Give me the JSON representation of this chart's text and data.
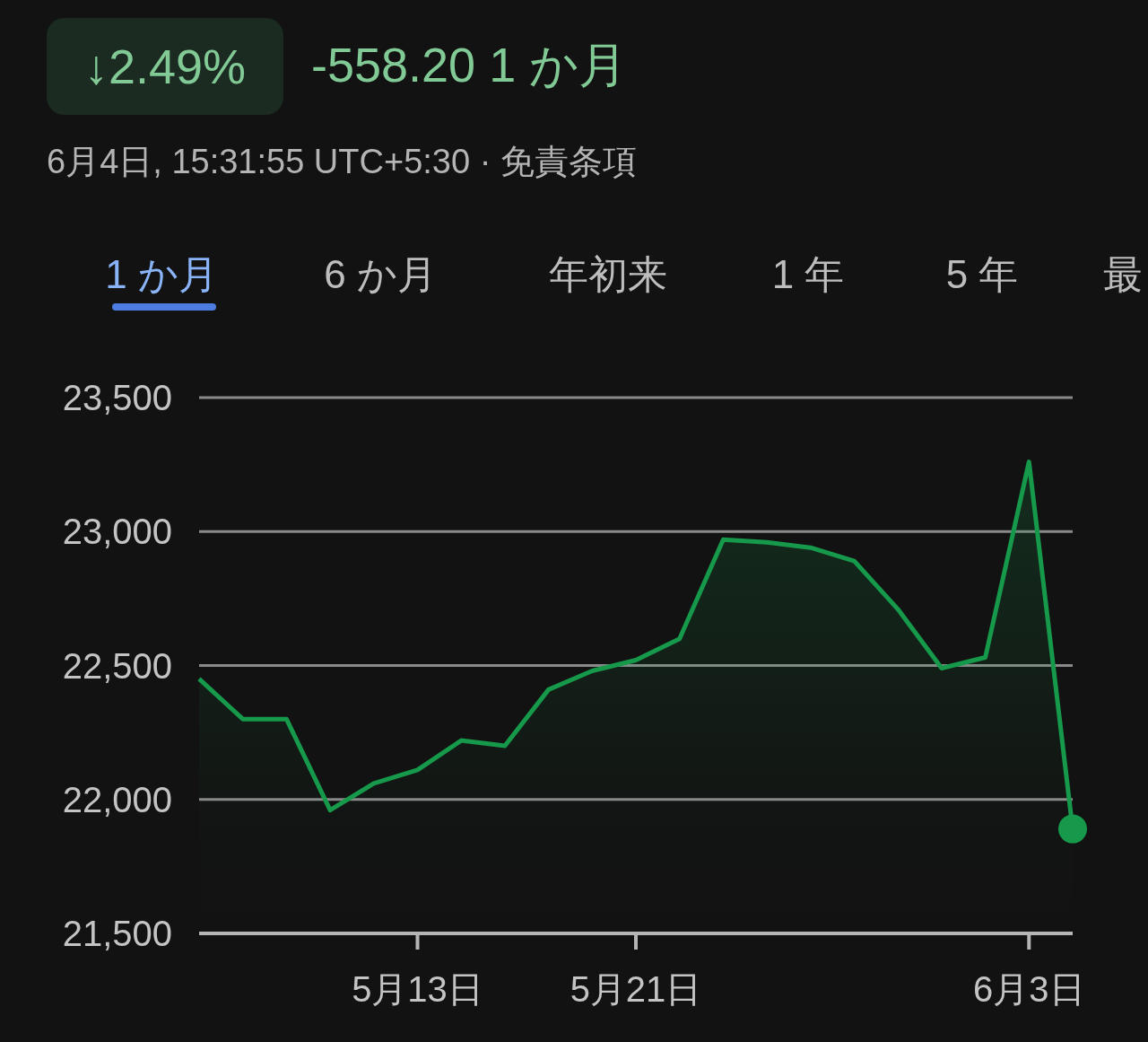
{
  "chart_data": {
    "type": "area",
    "title": "↓2.49%",
    "subtitle": "-558.20 1 か月",
    "annotations": [
      "6月4日, 15:31:55 UTC+5:30 · 免責条項",
      "1 か月",
      "6 か月",
      "年初来",
      "1 年",
      "5 年",
      "最"
    ],
    "categories": [
      null,
      null,
      null,
      null,
      null,
      "5月13日",
      null,
      null,
      null,
      null,
      "5月21日",
      null,
      null,
      null,
      null,
      null,
      null,
      null,
      null,
      "6月3日",
      null
    ],
    "series": [
      {
        "color": "#16994a",
        "values": [
          22450,
          22300,
          22300,
          21960,
          22060,
          22110,
          22220,
          22200,
          22410,
          22480,
          22520,
          22600,
          22970,
          22960,
          22940,
          22890,
          22710,
          22490,
          22530,
          23260,
          21890
        ]
      },
      {
        "type": "scatter",
        "color": "#16994a",
        "values": [
          null,
          null,
          null,
          null,
          null,
          null,
          null,
          null,
          null,
          null,
          null,
          null,
          null,
          null,
          null,
          null,
          null,
          null,
          null,
          null,
          21890
        ]
      }
    ],
    "ylim": [
      21500,
      23500
    ],
    "yticks": [
      {
        "value": 21500,
        "label": "21,500"
      },
      {
        "value": 22000,
        "label": "22,000"
      },
      {
        "value": 22500,
        "label": "22,500"
      },
      {
        "value": 23000,
        "label": "23,000"
      },
      {
        "value": 23500,
        "label": "23,500"
      }
    ],
    "grid": "y"
  }
}
